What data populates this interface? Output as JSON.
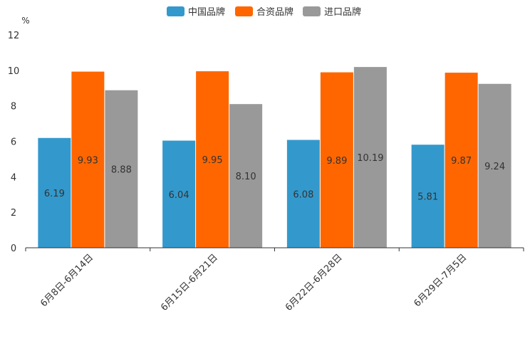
{
  "chart_data": {
    "type": "bar",
    "title": "",
    "ylabel": "%",
    "xlabel": "",
    "ylim": [
      0,
      12
    ],
    "yticks": [
      0,
      2,
      4,
      6,
      8,
      10,
      12
    ],
    "grid": false,
    "legend_position": "top-center",
    "categories": [
      "6月8日-6月14日",
      "6月15日-6月21日",
      "6月22日-6月28日",
      "6月29日-7月5日"
    ],
    "series": [
      {
        "name": "中国品牌",
        "color": "#3399CC",
        "values": [
          6.19,
          6.04,
          6.08,
          5.81
        ],
        "labels": [
          "6.19",
          "6.04",
          "6.08",
          "5.81"
        ]
      },
      {
        "name": "合资品牌",
        "color": "#FF6600",
        "values": [
          9.93,
          9.95,
          9.89,
          9.87
        ],
        "labels": [
          "9.93",
          "9.95",
          "9.89",
          "9.87"
        ]
      },
      {
        "name": "进口品牌",
        "color": "#999999",
        "values": [
          8.88,
          8.1,
          10.19,
          9.24
        ],
        "labels": [
          "8.88",
          "8.10",
          "10.19",
          "9.24"
        ]
      }
    ]
  }
}
